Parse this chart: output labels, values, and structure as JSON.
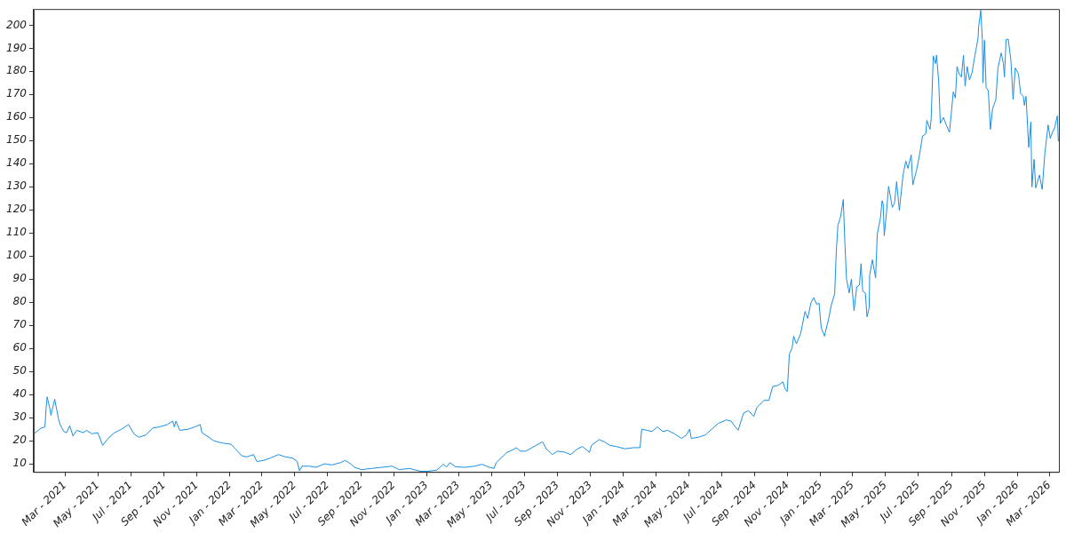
{
  "chart_data": {
    "type": "line",
    "x": [
      "2021-01-04",
      "2021-01-16",
      "2021-01-23",
      "2021-01-25",
      "2021-01-27",
      "2021-02-01",
      "2021-02-03",
      "2021-02-10",
      "2021-02-17",
      "2021-02-20",
      "2021-02-27",
      "2021-03-04",
      "2021-03-10",
      "2021-03-16",
      "2021-03-23",
      "2021-04-04",
      "2021-04-10",
      "2021-04-20",
      "2021-05-01",
      "2021-05-10",
      "2021-05-20",
      "2021-06-01",
      "2021-06-14",
      "2021-06-27",
      "2021-07-07",
      "2021-07-16",
      "2021-07-29",
      "2021-08-11",
      "2021-08-23",
      "2021-09-07",
      "2021-09-17",
      "2021-09-20",
      "2021-09-23",
      "2021-09-30",
      "2021-10-16",
      "2021-10-28",
      "2021-11-07",
      "2021-11-10",
      "2021-11-23",
      "2021-12-02",
      "2021-12-18",
      "2022-01-03",
      "2022-01-13",
      "2022-01-23",
      "2022-02-01",
      "2022-02-14",
      "2022-02-20",
      "2022-03-05",
      "2022-03-17",
      "2022-04-01",
      "2022-04-14",
      "2022-04-27",
      "2022-05-06",
      "2022-05-10",
      "2022-05-15",
      "2022-05-28",
      "2022-06-10",
      "2022-06-26",
      "2022-07-09",
      "2022-07-25",
      "2022-08-03",
      "2022-08-14",
      "2022-08-20",
      "2022-09-02",
      "2022-09-21",
      "2022-10-10",
      "2022-10-29",
      "2022-11-11",
      "2022-11-30",
      "2022-12-20",
      "2023-01-04",
      "2023-01-20",
      "2023-02-01",
      "2023-02-07",
      "2023-02-13",
      "2023-02-24",
      "2023-03-13",
      "2023-04-01",
      "2023-04-14",
      "2023-04-27",
      "2023-05-06",
      "2023-05-10",
      "2023-05-19",
      "2023-05-29",
      "2023-06-11",
      "2023-06-16",
      "2023-06-24",
      "2023-07-04",
      "2023-07-23",
      "2023-08-04",
      "2023-08-11",
      "2023-08-22",
      "2023-09-01",
      "2023-09-15",
      "2023-09-25",
      "2023-10-08",
      "2023-10-17",
      "2023-10-30",
      "2023-11-03",
      "2023-11-17",
      "2023-11-27",
      "2023-12-07",
      "2023-12-19",
      "2024-01-04",
      "2024-01-20",
      "2024-02-01",
      "2024-02-04",
      "2024-02-14",
      "2024-02-23",
      "2024-03-04",
      "2024-03-14",
      "2024-03-23",
      "2024-04-05",
      "2024-04-18",
      "2024-04-27",
      "2024-05-03",
      "2024-05-06",
      "2024-05-19",
      "2024-06-01",
      "2024-06-13",
      "2024-06-25",
      "2024-07-10",
      "2024-07-19",
      "2024-07-25",
      "2024-08-01",
      "2024-08-11",
      "2024-08-20",
      "2024-08-30",
      "2024-09-05",
      "2024-09-18",
      "2024-09-27",
      "2024-10-04",
      "2024-10-14",
      "2024-10-23",
      "2024-10-27",
      "2024-10-31",
      "2024-11-04",
      "2024-11-09",
      "2024-11-12",
      "2024-11-17",
      "2024-11-25",
      "2024-12-03",
      "2024-12-08",
      "2024-12-14",
      "2024-12-19",
      "2024-12-25",
      "2024-12-29",
      "2025-01-02",
      "2025-01-08",
      "2025-01-16",
      "2025-01-21",
      "2025-01-27",
      "2025-01-30",
      "2025-02-02",
      "2025-02-07",
      "2025-02-12",
      "2025-02-15",
      "2025-02-18",
      "2025-02-23",
      "2025-02-27",
      "2025-03-04",
      "2025-03-09",
      "2025-03-14",
      "2025-03-17",
      "2025-03-20",
      "2025-03-25",
      "2025-03-28",
      "2025-04-01",
      "2025-04-02",
      "2025-04-07",
      "2025-04-13",
      "2025-04-16",
      "2025-04-22",
      "2025-04-25",
      "2025-04-27",
      "2025-04-29",
      "2025-05-03",
      "2025-05-07",
      "2025-05-14",
      "2025-05-18",
      "2025-05-22",
      "2025-05-27",
      "2025-06-03",
      "2025-06-08",
      "2025-06-12",
      "2025-06-18",
      "2025-06-21",
      "2025-06-28",
      "2025-07-03",
      "2025-07-09",
      "2025-07-15",
      "2025-07-17",
      "2025-07-23",
      "2025-07-25",
      "2025-07-29",
      "2025-08-02",
      "2025-08-04",
      "2025-08-08",
      "2025-08-11",
      "2025-08-17",
      "2025-08-22",
      "2025-08-28",
      "2025-09-01",
      "2025-09-04",
      "2025-09-08",
      "2025-09-11",
      "2025-09-15",
      "2025-09-19",
      "2025-09-23",
      "2025-09-26",
      "2025-09-30",
      "2025-10-04",
      "2025-10-09",
      "2025-10-13",
      "2025-10-16",
      "2025-10-20",
      "2025-10-21",
      "2025-10-25",
      "2025-10-28",
      "2025-10-29",
      "2025-11-01",
      "2025-11-04",
      "2025-11-08",
      "2025-11-12",
      "2025-11-16",
      "2025-11-22",
      "2025-11-26",
      "2025-12-02",
      "2025-12-06",
      "2025-12-08",
      "2025-12-11",
      "2025-12-15",
      "2025-12-20",
      "2025-12-24",
      "2025-12-28",
      "2026-01-03",
      "2026-01-07",
      "2026-01-12",
      "2026-01-14",
      "2026-01-17",
      "2026-01-22",
      "2026-01-26",
      "2026-01-28",
      "2026-02-01",
      "2026-02-04",
      "2026-02-11",
      "2026-02-16",
      "2026-02-21",
      "2026-02-27",
      "2026-03-03",
      "2026-03-07",
      "2026-03-11",
      "2026-03-16",
      "2026-03-18"
    ],
    "values": [
      23.3,
      25.5,
      26,
      34,
      39,
      34,
      31,
      38,
      29.5,
      27,
      24,
      23.5,
      26.5,
      22,
      24.5,
      23.5,
      24.5,
      23,
      23.5,
      18,
      21,
      23.5,
      25,
      27,
      23,
      21.5,
      22.5,
      25.5,
      26,
      27,
      28.5,
      26,
      28.5,
      24.5,
      25,
      26,
      27,
      23.5,
      21.5,
      20,
      19,
      18.5,
      16,
      13.5,
      13,
      14,
      11,
      11.5,
      12.5,
      14,
      13,
      12.5,
      11,
      7,
      9,
      9,
      8.5,
      10,
      9.5,
      10.5,
      11.5,
      9.8,
      8.5,
      7.5,
      8,
      8.5,
      9,
      7.5,
      8,
      6.8,
      6.8,
      7.3,
      9.8,
      8.6,
      10.5,
      8.7,
      8.5,
      9,
      9.8,
      8.5,
      8,
      10.5,
      12.5,
      14.8,
      16.2,
      17,
      15.5,
      15.5,
      18,
      19.5,
      16.5,
      14,
      15.5,
      15,
      14,
      16.5,
      17.5,
      15,
      18,
      20.5,
      19.5,
      18,
      17.5,
      16.5,
      17,
      17,
      25,
      24.5,
      24,
      26,
      24,
      24.5,
      23,
      21,
      22.5,
      25,
      21,
      21.5,
      22.5,
      25,
      27.5,
      29,
      28.5,
      26.5,
      24.5,
      32,
      33,
      30.5,
      34.5,
      37.5,
      37.5,
      43.5,
      44,
      45.5,
      42.5,
      41.3,
      57.5,
      60.2,
      65.3,
      62,
      66.5,
      76,
      73,
      79.7,
      82,
      79,
      79.7,
      69,
      65.3,
      73,
      79,
      83.6,
      101.6,
      113.3,
      117,
      124.5,
      105.5,
      90,
      84,
      90,
      76.3,
      86.7,
      87.4,
      96.7,
      84.8,
      84,
      73.7,
      77.6,
      91.9,
      98.4,
      90.6,
      109.4,
      116.6,
      124,
      122.4,
      108.8,
      118.5,
      130.2,
      121.1,
      123,
      132.2,
      119.8,
      135.4,
      141.2,
      138,
      143.8,
      130.8,
      137.3,
      143.2,
      152,
      152.9,
      158.8,
      154.9,
      159.4,
      186.7,
      183.4,
      187,
      175.6,
      157.5,
      160,
      156.8,
      153.6,
      163.3,
      171.1,
      168.5,
      182.1,
      178.9,
      177.6,
      187,
      173.7,
      182.1,
      176.3,
      179.5,
      185.4,
      189.2,
      194.4,
      199,
      206.5,
      193.8,
      175,
      193.5,
      173,
      171.7,
      154.9,
      163.9,
      167.8,
      181.5,
      188,
      183.4,
      177.6,
      193.8,
      194,
      184.7,
      167.8,
      181.5,
      178.9,
      170.4,
      169.2,
      165.3,
      169.2,
      147.1,
      158.1,
      129.9,
      141.9,
      129.5,
      135.1,
      128.9,
      144.5,
      156.8,
      151,
      153.6,
      155.5,
      160.7,
      149.7
    ],
    "color": "#1a8fe3",
    "xlim": [
      "2021-01-02",
      "2026-03-19"
    ],
    "xticks": [
      {
        "value": "2021-03-01",
        "label": "Mar - 2021"
      },
      {
        "value": "2021-05-01",
        "label": "May - 2021"
      },
      {
        "value": "2021-07-01",
        "label": "Jul - 2021"
      },
      {
        "value": "2021-09-01",
        "label": "Sep - 2021"
      },
      {
        "value": "2021-11-01",
        "label": "Nov - 2021"
      },
      {
        "value": "2022-01-01",
        "label": "Jan - 2022"
      },
      {
        "value": "2022-03-01",
        "label": "Mar - 2022"
      },
      {
        "value": "2022-05-01",
        "label": "May - 2022"
      },
      {
        "value": "2022-07-01",
        "label": "Jul - 2022"
      },
      {
        "value": "2022-09-01",
        "label": "Sep - 2022"
      },
      {
        "value": "2022-11-01",
        "label": "Nov - 2022"
      },
      {
        "value": "2023-01-01",
        "label": "Jan - 2023"
      },
      {
        "value": "2023-03-01",
        "label": "Mar - 2023"
      },
      {
        "value": "2023-05-01",
        "label": "May - 2023"
      },
      {
        "value": "2023-07-01",
        "label": "Jul - 2023"
      },
      {
        "value": "2023-09-01",
        "label": "Sep - 2023"
      },
      {
        "value": "2023-11-01",
        "label": "Nov - 2023"
      },
      {
        "value": "2024-01-01",
        "label": "Jan - 2024"
      },
      {
        "value": "2024-03-01",
        "label": "Mar - 2024"
      },
      {
        "value": "2024-05-01",
        "label": "May - 2024"
      },
      {
        "value": "2024-07-01",
        "label": "Jul - 2024"
      },
      {
        "value": "2024-09-01",
        "label": "Sep - 2024"
      },
      {
        "value": "2024-11-01",
        "label": "Nov - 2024"
      },
      {
        "value": "2025-01-01",
        "label": "Jan - 2025"
      },
      {
        "value": "2025-03-01",
        "label": "Mar - 2025"
      },
      {
        "value": "2025-05-01",
        "label": "May - 2025"
      },
      {
        "value": "2025-07-01",
        "label": "Jul - 2025"
      },
      {
        "value": "2025-09-01",
        "label": "Sep - 2025"
      },
      {
        "value": "2025-11-01",
        "label": "Nov - 2025"
      },
      {
        "value": "2026-01-01",
        "label": "Jan - 2026"
      },
      {
        "value": "2026-03-01",
        "label": "Mar - 2026"
      }
    ],
    "ylim": [
      6.5,
      207
    ],
    "yticks": [
      10,
      20,
      30,
      40,
      50,
      60,
      70,
      80,
      90,
      100,
      110,
      120,
      130,
      140,
      150,
      160,
      170,
      180,
      190,
      200
    ],
    "grid": false,
    "marker": "none"
  }
}
